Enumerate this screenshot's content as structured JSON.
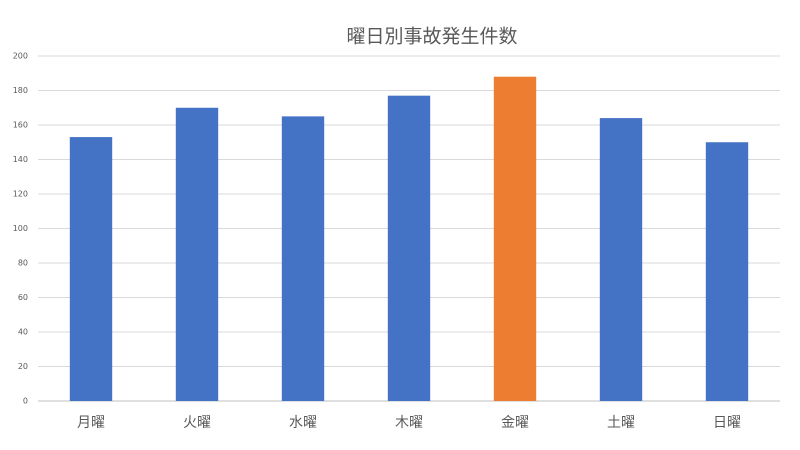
{
  "chart_data": {
    "type": "bar",
    "title": "曜日別事故発生件数",
    "categories": [
      "月曜",
      "火曜",
      "水曜",
      "木曜",
      "金曜",
      "土曜",
      "日曜"
    ],
    "values": [
      153,
      170,
      165,
      177,
      188,
      164,
      150
    ],
    "colors": [
      "#4472c4",
      "#4472c4",
      "#4472c4",
      "#4472c4",
      "#ed7d31",
      "#4472c4",
      "#4472c4"
    ],
    "ylim": [
      0,
      200
    ],
    "yticks": [
      0,
      20,
      40,
      60,
      80,
      100,
      120,
      140,
      160,
      180,
      200
    ],
    "grid": true
  }
}
